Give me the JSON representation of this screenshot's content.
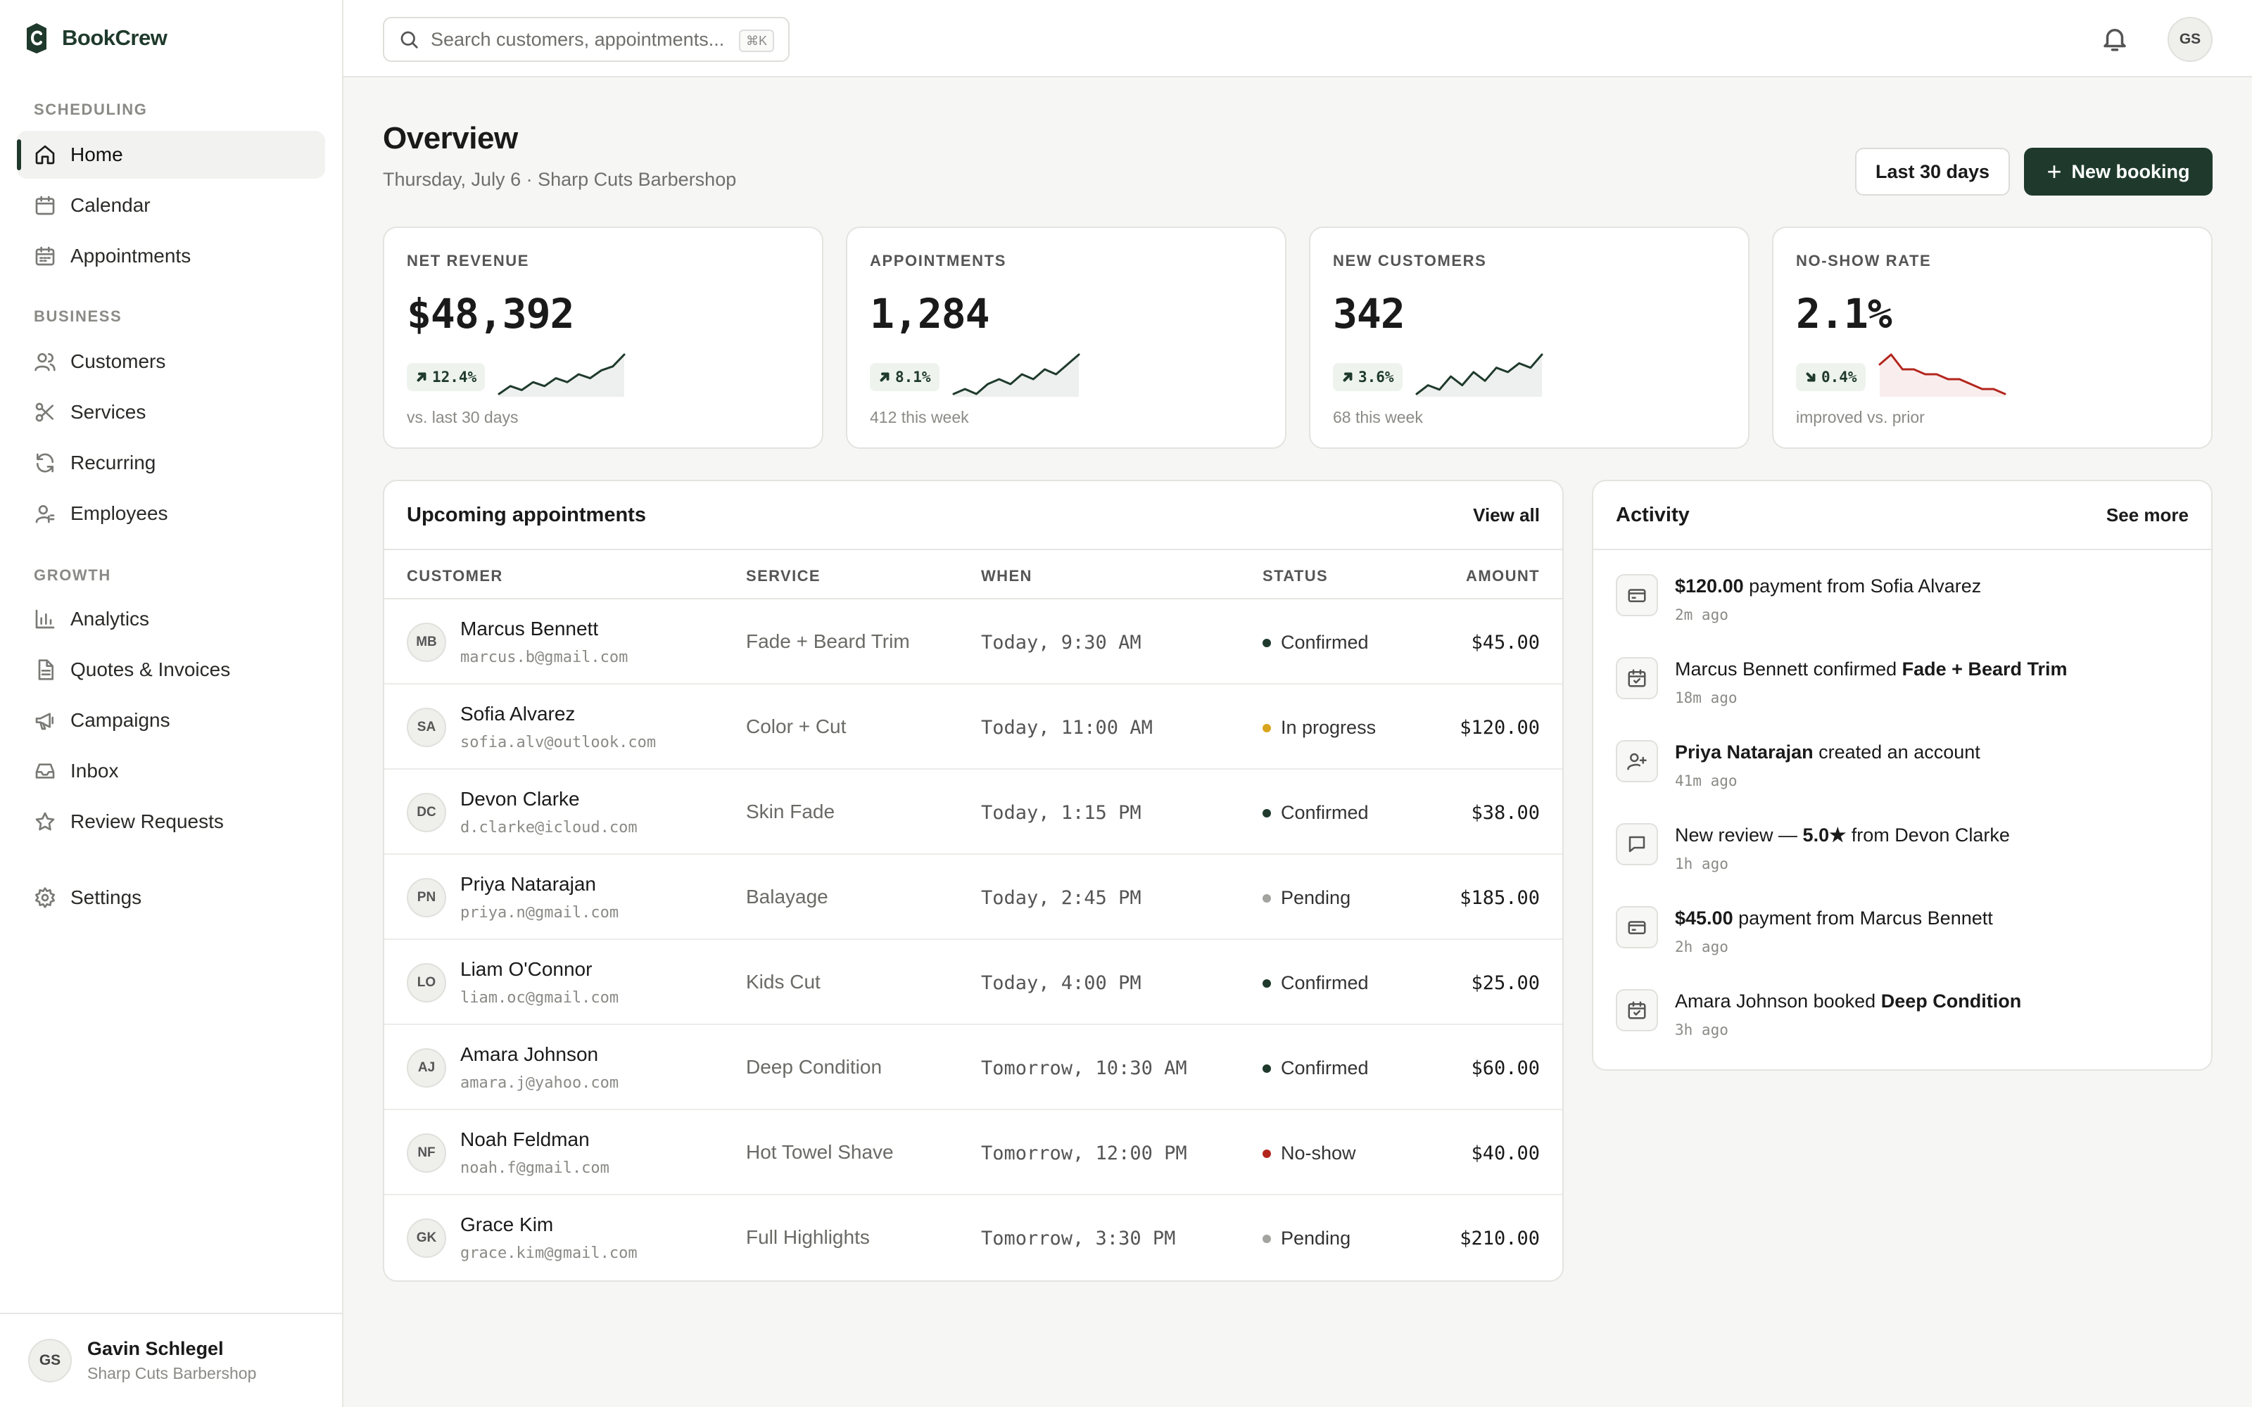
{
  "app": {
    "name": "BookCrew"
  },
  "sidebar": {
    "sections": [
      "SCHEDULING",
      "BUSINESS",
      "GROWTH"
    ],
    "items": [
      {
        "label": "Home",
        "icon": "home-icon"
      },
      {
        "label": "Calendar",
        "icon": "calendar-icon"
      },
      {
        "label": "Appointments",
        "icon": "appointments-icon"
      },
      {
        "label": "Customers",
        "icon": "users-icon"
      },
      {
        "label": "Services",
        "icon": "scissors-icon"
      },
      {
        "label": "Recurring",
        "icon": "refresh-icon"
      },
      {
        "label": "Employees",
        "icon": "employee-icon"
      },
      {
        "label": "Analytics",
        "icon": "bar-chart-icon"
      },
      {
        "label": "Quotes & Invoices",
        "icon": "document-icon"
      },
      {
        "label": "Campaigns",
        "icon": "megaphone-icon"
      },
      {
        "label": "Inbox",
        "icon": "inbox-icon"
      },
      {
        "label": "Review Requests",
        "icon": "star-icon"
      },
      {
        "label": "Settings",
        "icon": "gear-icon"
      }
    ],
    "active": "Home",
    "user": {
      "initials": "GS",
      "name": "Gavin Schlegel",
      "org": "Sharp Cuts Barbershop"
    }
  },
  "topbar": {
    "search_placeholder": "Search customers, appointments...",
    "search_shortcut": "⌘K",
    "user_initials": "GS"
  },
  "header": {
    "title": "Overview",
    "subtitle": "Thursday, July 6 · Sharp Cuts Barbershop",
    "range_label": "Last 30 days",
    "new_booking_label": "New booking"
  },
  "kpis": [
    {
      "label": "NET REVENUE",
      "value": "$48,392",
      "change": "12.4%",
      "direction": "up",
      "note": "vs. last 30 days",
      "trend": [
        2,
        4,
        3,
        5,
        4,
        6,
        5,
        7,
        6,
        8,
        9,
        12
      ],
      "color": "#1f3a2c"
    },
    {
      "label": "APPOINTMENTS",
      "value": "1,284",
      "change": "8.1%",
      "direction": "up",
      "note": "412 this week",
      "trend": [
        2,
        3,
        2,
        4,
        5,
        4,
        6,
        5,
        7,
        6,
        8,
        10
      ],
      "color": "#1f3a2c"
    },
    {
      "label": "NEW CUSTOMERS",
      "value": "342",
      "change": "3.6%",
      "direction": "up",
      "note": "68 this week",
      "trend": [
        2,
        4,
        3,
        6,
        4,
        7,
        5,
        8,
        7,
        9,
        8,
        11
      ],
      "color": "#1f3a2c"
    },
    {
      "label": "NO-SHOW RATE",
      "value": "2.1%",
      "change": "0.4%",
      "direction": "down",
      "note": "improved vs. prior",
      "trend": [
        9,
        11,
        8,
        8,
        7,
        7,
        6,
        6,
        5,
        4,
        4,
        3
      ],
      "color": "#b3261e"
    }
  ],
  "appointments": {
    "title": "Upcoming appointments",
    "view_all": "View all",
    "columns": [
      "CUSTOMER",
      "SERVICE",
      "WHEN",
      "STATUS",
      "AMOUNT"
    ],
    "status_colors": {
      "Confirmed": "#1f3a2c",
      "In progress": "#d9a520",
      "Pending": "#a3a39f",
      "No-show": "#b3261e"
    },
    "rows": [
      {
        "initials": "MB",
        "name": "Marcus Bennett",
        "email": "marcus.b@gmail.com",
        "service": "Fade + Beard Trim",
        "when": "Today, 9:30 AM",
        "status": "Confirmed",
        "amount": "$45.00"
      },
      {
        "initials": "SA",
        "name": "Sofia Alvarez",
        "email": "sofia.alv@outlook.com",
        "service": "Color + Cut",
        "when": "Today, 11:00 AM",
        "status": "In progress",
        "amount": "$120.00"
      },
      {
        "initials": "DC",
        "name": "Devon Clarke",
        "email": "d.clarke@icloud.com",
        "service": "Skin Fade",
        "when": "Today, 1:15 PM",
        "status": "Confirmed",
        "amount": "$38.00"
      },
      {
        "initials": "PN",
        "name": "Priya Natarajan",
        "email": "priya.n@gmail.com",
        "service": "Balayage",
        "when": "Today, 2:45 PM",
        "status": "Pending",
        "amount": "$185.00"
      },
      {
        "initials": "LO",
        "name": "Liam O'Connor",
        "email": "liam.oc@gmail.com",
        "service": "Kids Cut",
        "when": "Today, 4:00 PM",
        "status": "Confirmed",
        "amount": "$25.00"
      },
      {
        "initials": "AJ",
        "name": "Amara Johnson",
        "email": "amara.j@yahoo.com",
        "service": "Deep Condition",
        "when": "Tomorrow, 10:30 AM",
        "status": "Confirmed",
        "amount": "$60.00"
      },
      {
        "initials": "NF",
        "name": "Noah Feldman",
        "email": "noah.f@gmail.com",
        "service": "Hot Towel Shave",
        "when": "Tomorrow, 12:00 PM",
        "status": "No-show",
        "amount": "$40.00"
      },
      {
        "initials": "GK",
        "name": "Grace Kim",
        "email": "grace.kim@gmail.com",
        "service": "Full Highlights",
        "when": "Tomorrow, 3:30 PM",
        "status": "Pending",
        "amount": "$210.00"
      }
    ]
  },
  "activity": {
    "title": "Activity",
    "see_more": "See more",
    "items": [
      {
        "icon": "card-icon",
        "parts": [
          {
            "t": "$120.00",
            "b": true
          },
          {
            "t": " payment from Sofia Alvarez",
            "b": false
          }
        ],
        "time": "2m ago"
      },
      {
        "icon": "calendar-check-icon",
        "parts": [
          {
            "t": "Marcus Bennett confirmed ",
            "b": false
          },
          {
            "t": "Fade + Beard Trim",
            "b": true
          }
        ],
        "time": "18m ago"
      },
      {
        "icon": "user-plus-icon",
        "parts": [
          {
            "t": "Priya Natarajan",
            "b": true
          },
          {
            "t": " created an account",
            "b": false
          }
        ],
        "time": "41m ago"
      },
      {
        "icon": "message-icon",
        "parts": [
          {
            "t": "New review — ",
            "b": false
          },
          {
            "t": "5.0★",
            "b": true
          },
          {
            "t": " from Devon Clarke",
            "b": false
          }
        ],
        "time": "1h ago"
      },
      {
        "icon": "card-icon",
        "parts": [
          {
            "t": "$45.00",
            "b": true
          },
          {
            "t": " payment from Marcus Bennett",
            "b": false
          }
        ],
        "time": "2h ago"
      },
      {
        "icon": "calendar-check-icon",
        "parts": [
          {
            "t": "Amara Johnson booked ",
            "b": false
          },
          {
            "t": "Deep Condition",
            "b": true
          }
        ],
        "time": "3h ago"
      }
    ]
  }
}
